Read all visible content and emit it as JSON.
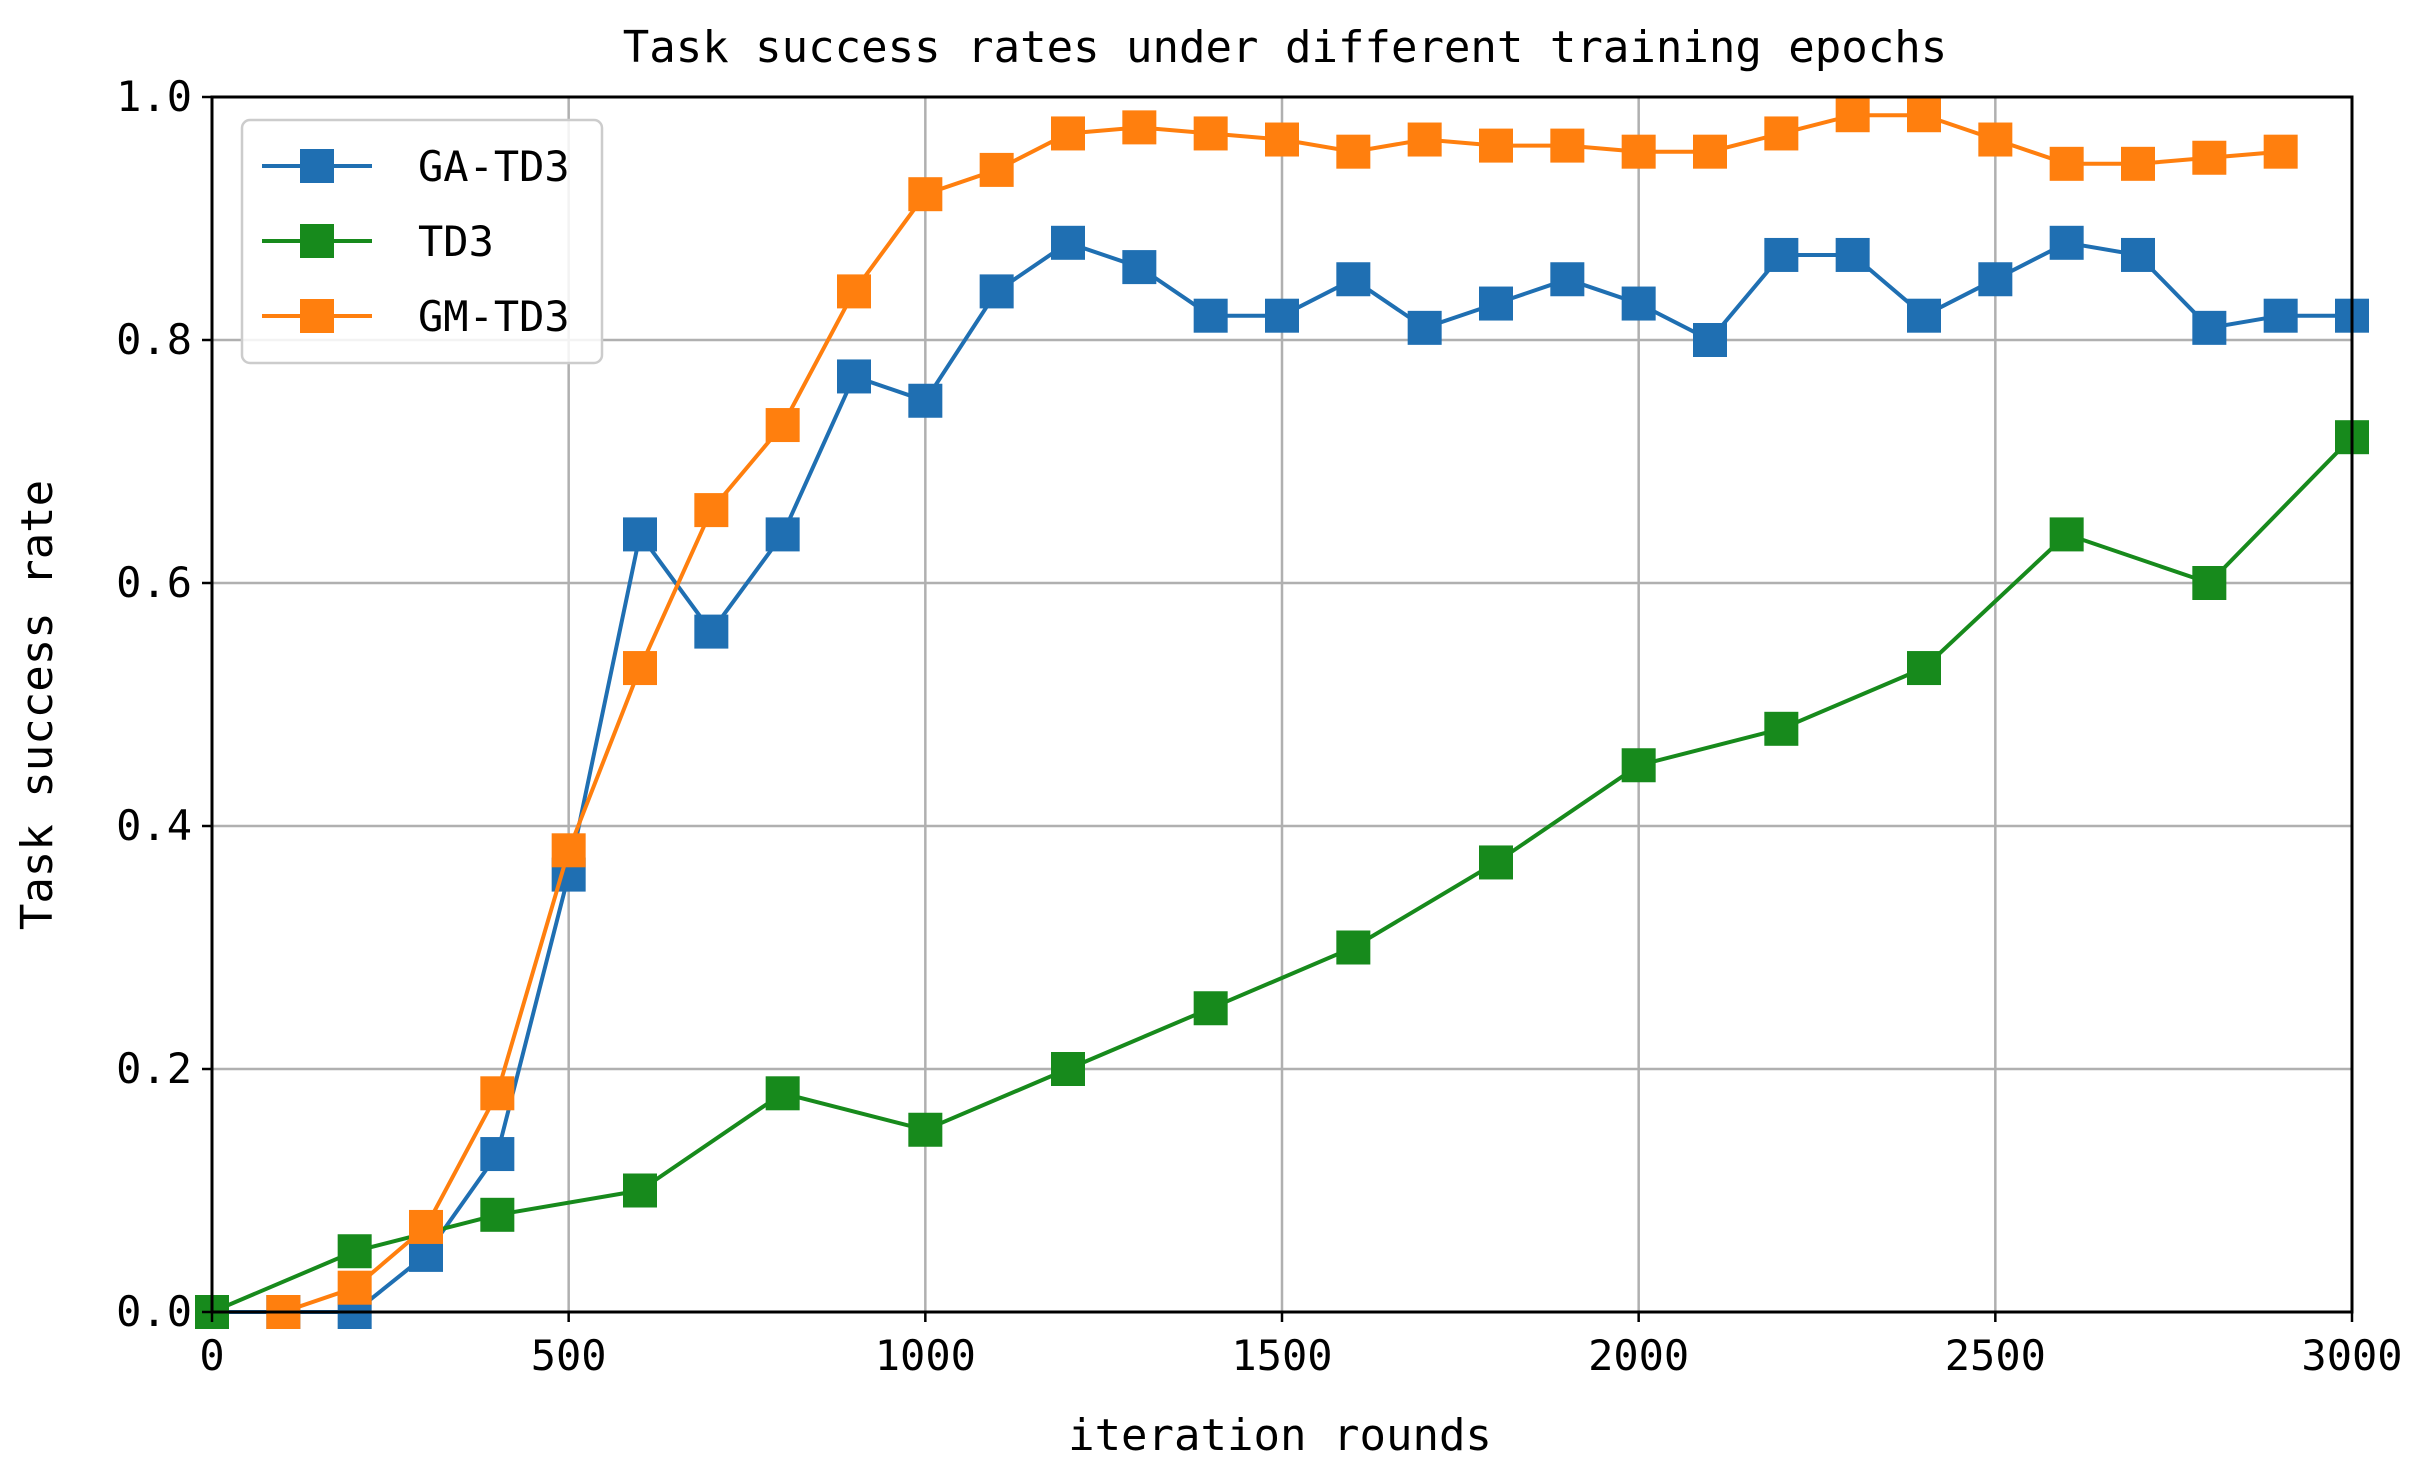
{
  "chart_data": {
    "type": "line",
    "title": "Task success rates under different training epochs",
    "xlabel": "iteration rounds",
    "ylabel": "Task success rate",
    "xlim": [
      0,
      3000
    ],
    "ylim": [
      0,
      1.0
    ],
    "xticks": [
      0,
      500,
      1000,
      1500,
      2000,
      2500,
      3000
    ],
    "xtick_labels": [
      "0",
      "500",
      "1000",
      "1500",
      "2000",
      "2500",
      "3000"
    ],
    "yticks": [
      0,
      0.2,
      0.4,
      0.6,
      0.8,
      1.0
    ],
    "ytick_labels": [
      "0.0",
      "0.2",
      "0.4",
      "0.6",
      "0.8",
      "1.0"
    ],
    "grid": true,
    "legend_position": "top-left",
    "series": [
      {
        "name": "GA-TD3",
        "color": "#1f6fb2",
        "marker": "square",
        "x": [
          0,
          100,
          200,
          300,
          400,
          500,
          600,
          700,
          800,
          900,
          1000,
          1100,
          1200,
          1300,
          1400,
          1500,
          1600,
          1700,
          1800,
          1900,
          2000,
          2100,
          2200,
          2300,
          2400,
          2500,
          2600,
          2700,
          2800,
          2900,
          3000
        ],
        "values": [
          0.0,
          0.0,
          0.0,
          0.047,
          0.13,
          0.36,
          0.64,
          0.56,
          0.64,
          0.77,
          0.75,
          0.84,
          0.88,
          0.86,
          0.82,
          0.82,
          0.85,
          0.81,
          0.83,
          0.85,
          0.83,
          0.8,
          0.87,
          0.87,
          0.82,
          0.85,
          0.88,
          0.87,
          0.81,
          0.82,
          0.82
        ]
      },
      {
        "name": "TD3",
        "color": "#178a1c",
        "marker": "square",
        "x": [
          0,
          200,
          400,
          600,
          800,
          1000,
          1200,
          1400,
          1600,
          1800,
          2000,
          2200,
          2400,
          2600,
          2800,
          3000
        ],
        "values": [
          0.0,
          0.05,
          0.08,
          0.1,
          0.18,
          0.15,
          0.2,
          0.25,
          0.3,
          0.37,
          0.45,
          0.48,
          0.53,
          0.64,
          0.6,
          0.72
        ]
      },
      {
        "name": "GM-TD3",
        "color": "#ff7f0e",
        "marker": "square",
        "x": [
          100,
          200,
          300,
          400,
          500,
          600,
          700,
          800,
          900,
          1000,
          1100,
          1200,
          1300,
          1400,
          1500,
          1600,
          1700,
          1800,
          1900,
          2000,
          2100,
          2200,
          2300,
          2400,
          2500,
          2600,
          2700,
          2800,
          2900
        ],
        "values": [
          0.0,
          0.02,
          0.07,
          0.18,
          0.38,
          0.53,
          0.66,
          0.73,
          0.84,
          0.92,
          0.94,
          0.97,
          0.975,
          0.97,
          0.965,
          0.955,
          0.965,
          0.96,
          0.96,
          0.955,
          0.955,
          0.97,
          0.985,
          0.985,
          0.965,
          0.945,
          0.945,
          0.95,
          0.955
        ]
      }
    ]
  }
}
